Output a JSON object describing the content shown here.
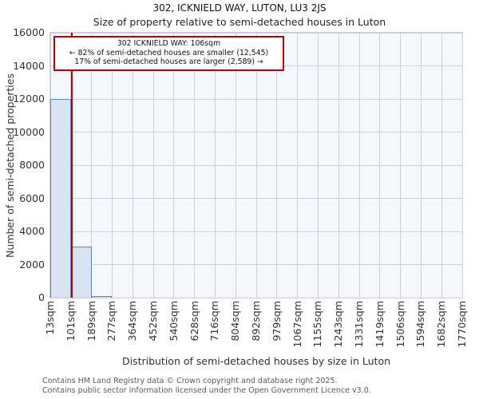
{
  "title": "302, ICKNIELD WAY, LUTON, LU3 2JS",
  "subtitle": "Size of property relative to semi-detached houses in Luton",
  "annotation": {
    "line1": "302 ICKNIELD WAY: 106sqm",
    "line2": "← 82% of semi-detached houses are smaller (12,545)",
    "line3": "17% of semi-detached houses are larger (2,589) →"
  },
  "footer": {
    "line1": "Contains HM Land Registry data © Crown copyright and database right 2025.",
    "line2": "Contains public sector information licensed under the Open Government Licence v3.0."
  },
  "chart_data": {
    "type": "bar",
    "title": "302, ICKNIELD WAY, LUTON, LU3 2JS",
    "subtitle": "Size of property relative to semi-detached houses in Luton",
    "xlabel": "Distribution of semi-detached houses by size in Luton",
    "ylabel": "Number of semi-detached properties",
    "ylim": [
      0,
      16000
    ],
    "y_ticks": [
      0,
      2000,
      4000,
      6000,
      8000,
      10000,
      12000,
      14000,
      16000
    ],
    "bin_edges_sqm": [
      13,
      101,
      189,
      277,
      364,
      452,
      540,
      628,
      716,
      804,
      892,
      979,
      1067,
      1155,
      1243,
      1331,
      1419,
      1506,
      1594,
      1682,
      1770
    ],
    "x_tick_labels": [
      "13sqm",
      "101sqm",
      "189sqm",
      "277sqm",
      "364sqm",
      "452sqm",
      "540sqm",
      "628sqm",
      "716sqm",
      "804sqm",
      "892sqm",
      "979sqm",
      "1067sqm",
      "1155sqm",
      "1243sqm",
      "1331sqm",
      "1419sqm",
      "1506sqm",
      "1594sqm",
      "1682sqm",
      "1770sqm"
    ],
    "values": [
      12000,
      3100,
      100,
      0,
      0,
      0,
      0,
      0,
      0,
      0,
      0,
      0,
      0,
      0,
      0,
      0,
      0,
      0,
      0,
      0
    ],
    "marker": {
      "label": "302 ICKNIELD WAY",
      "value_sqm": 106,
      "smaller_pct": 82,
      "smaller_count": "12,545",
      "larger_pct": 17,
      "larger_count": "2,589"
    },
    "grid": true,
    "legend_position": "none",
    "colors": {
      "bar_fill": "#d8e2f0",
      "bar_edge": "#5b87c0",
      "plot_bg": "#f4f7fc",
      "grid": "#cdd1d8",
      "spine": "#c9cdd4",
      "marker_line": "#c00000",
      "annotation_border": "#c00000",
      "tick_text": "#333333",
      "footer_text": "#595959"
    }
  }
}
